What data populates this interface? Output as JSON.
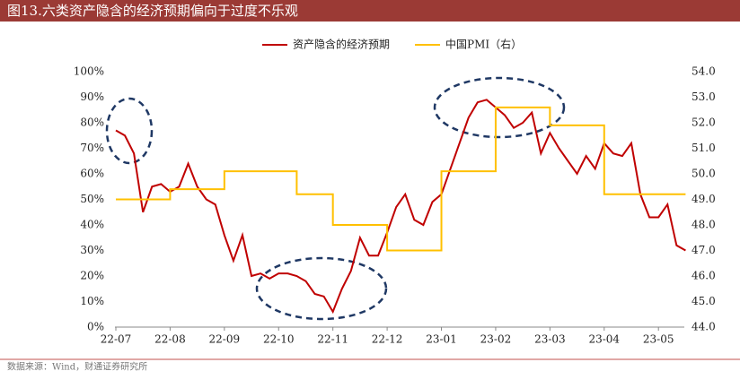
{
  "chart_data": {
    "type": "line",
    "title": "图13.六类资产隐含的经济预期偏向于过度不乐观",
    "source": "数据来源：Wind，财通证券研究所",
    "categories": [
      "22-07",
      null,
      null,
      null,
      null,
      null,
      "22-08",
      null,
      null,
      null,
      null,
      null,
      "22-09",
      null,
      null,
      null,
      null,
      null,
      "22-10",
      null,
      null,
      null,
      null,
      null,
      "22-11",
      null,
      null,
      null,
      null,
      null,
      "22-12",
      null,
      null,
      null,
      null,
      null,
      "23-01",
      null,
      null,
      null,
      null,
      null,
      "23-02",
      null,
      null,
      null,
      null,
      null,
      "23-03",
      null,
      null,
      null,
      null,
      null,
      "23-04",
      null,
      null,
      null,
      null,
      null,
      "23-05",
      null,
      null,
      null
    ],
    "series": [
      {
        "name": "资产隐含的经济预期",
        "color": "#c00000",
        "values": [
          77,
          75,
          68,
          45,
          55,
          56,
          53,
          55,
          64,
          55,
          50,
          48,
          36,
          26,
          36,
          20,
          21,
          19,
          21,
          21,
          20,
          18,
          13,
          12,
          6,
          15,
          22,
          35,
          28,
          28,
          37,
          47,
          52,
          42,
          40,
          49,
          52,
          62,
          72,
          82,
          88,
          89,
          86,
          83,
          78,
          80,
          84,
          68,
          76,
          70,
          65,
          60,
          67,
          62,
          72,
          68,
          67,
          72,
          52,
          43,
          43,
          48,
          32,
          30
        ]
      },
      {
        "name": "中国PMI（右）",
        "color": "#ffc000",
        "axis": "y2",
        "step": "post",
        "values": [
          49.0,
          49.0,
          49.0,
          49.0,
          49.0,
          49.0,
          49.4,
          49.4,
          49.4,
          49.4,
          49.4,
          49.4,
          50.1,
          50.1,
          50.1,
          50.1,
          50.1,
          50.1,
          50.1,
          50.1,
          49.2,
          49.2,
          49.2,
          49.2,
          48.0,
          48.0,
          48.0,
          48.0,
          48.0,
          48.0,
          47.0,
          47.0,
          47.0,
          47.0,
          47.0,
          47.0,
          50.1,
          50.1,
          50.1,
          50.1,
          50.1,
          50.1,
          52.6,
          52.6,
          52.6,
          52.6,
          52.6,
          52.6,
          51.9,
          51.9,
          51.9,
          51.9,
          51.9,
          51.9,
          49.2,
          49.2,
          49.2,
          49.2,
          49.2,
          49.2,
          49.2,
          49.2,
          49.2,
          49.2
        ]
      }
    ],
    "ylim": [
      0,
      100
    ],
    "yticks": [
      {
        "value": 0,
        "label": "0%"
      },
      {
        "value": 10,
        "label": "10%"
      },
      {
        "value": 20,
        "label": "20%"
      },
      {
        "value": 30,
        "label": "30%"
      },
      {
        "value": 40,
        "label": "40%"
      },
      {
        "value": 50,
        "label": "50%"
      },
      {
        "value": 60,
        "label": "60%"
      },
      {
        "value": 70,
        "label": "70%"
      },
      {
        "value": 80,
        "label": "80%"
      },
      {
        "value": 90,
        "label": "90%"
      },
      {
        "value": 100,
        "label": "100%"
      }
    ],
    "y2lim": [
      44,
      54
    ],
    "y2ticks": [
      {
        "value": 44,
        "label": "44.0"
      },
      {
        "value": 45,
        "label": "45.0"
      },
      {
        "value": 46,
        "label": "46.0"
      },
      {
        "value": 47,
        "label": "47.0"
      },
      {
        "value": 48,
        "label": "48.0"
      },
      {
        "value": 49,
        "label": "49.0"
      },
      {
        "value": 50,
        "label": "50.0"
      },
      {
        "value": 51,
        "label": "51.0"
      },
      {
        "value": 52,
        "label": "52.0"
      },
      {
        "value": 53,
        "label": "53.0"
      },
      {
        "value": 54,
        "label": "54.0"
      }
    ],
    "grid": false,
    "legend": "top"
  }
}
